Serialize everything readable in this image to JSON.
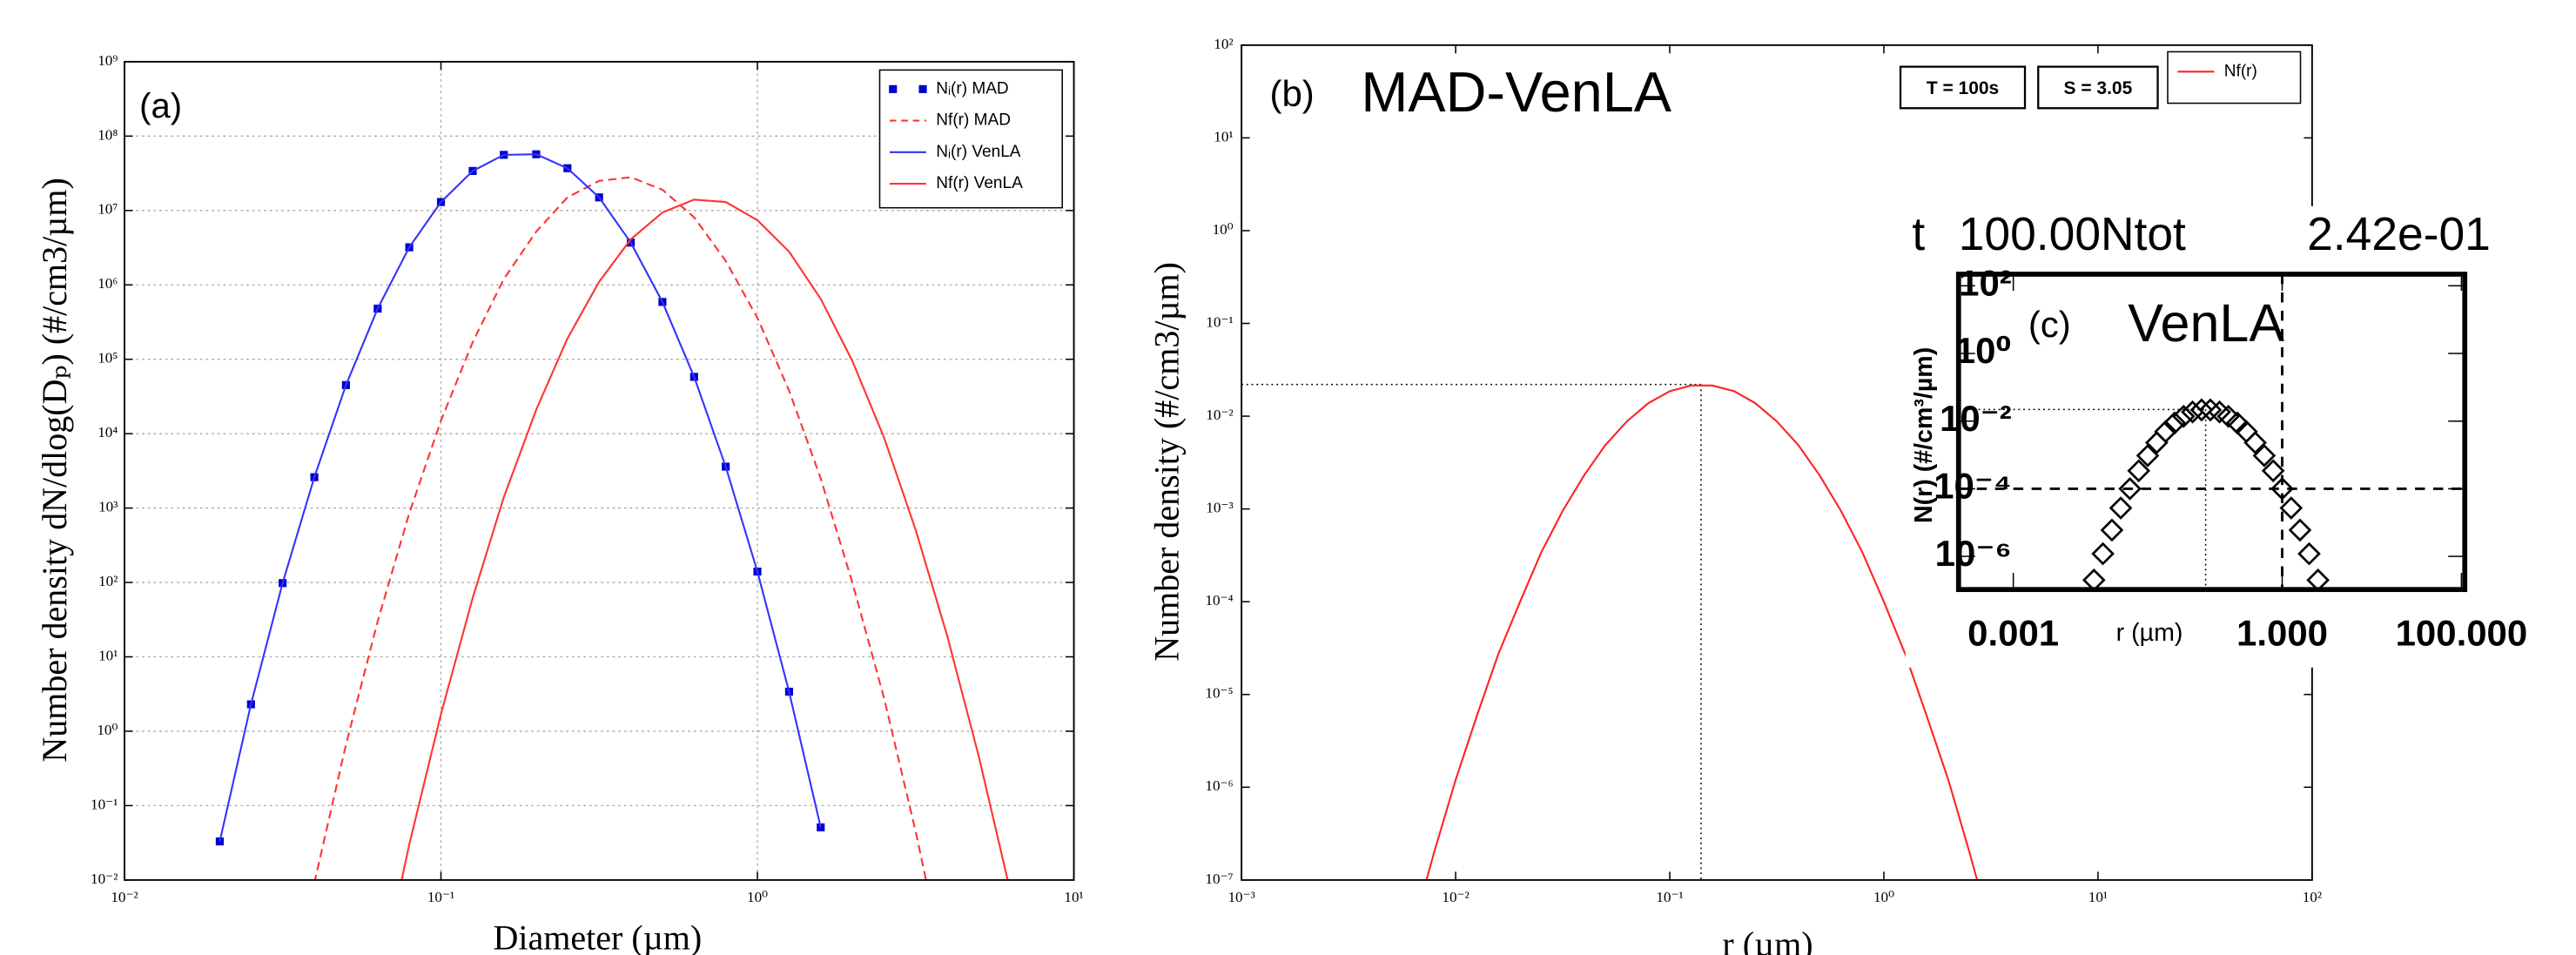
{
  "chart_data": [
    {
      "type": "line",
      "label": "(a)",
      "xlabel": "Diameter (µm)",
      "ylabel": "Number density dN/dlog(Dₚ) (#/cm3/µm)",
      "log_x": true,
      "log_y": true,
      "grid": true,
      "legend": "upper right",
      "xlim": [
        0.01,
        10
      ],
      "ylim": [
        0.01,
        1000000000
      ],
      "xticks": [
        {
          "value": 0.01,
          "label": "10⁻²"
        },
        {
          "value": 0.1,
          "label": "10⁻¹"
        },
        {
          "value": 1,
          "label": "10⁰"
        },
        {
          "value": 10,
          "label": "10¹"
        }
      ],
      "yticks": [
        {
          "value": 0.01,
          "label": "10⁻²"
        },
        {
          "value": 0.1,
          "label": "10⁻¹"
        },
        {
          "value": 1,
          "label": "10⁰"
        },
        {
          "value": 10,
          "label": "10¹"
        },
        {
          "value": 100,
          "label": "10²"
        },
        {
          "value": 1000,
          "label": "10³"
        },
        {
          "value": 10000,
          "label": "10⁴"
        },
        {
          "value": 100000,
          "label": "10⁵"
        },
        {
          "value": 1000000,
          "label": "10⁶"
        },
        {
          "value": 10000000,
          "label": "10⁷"
        },
        {
          "value": 100000000,
          "label": "10⁸"
        },
        {
          "value": 1000000000,
          "label": "10⁹"
        }
      ],
      "series": [
        {
          "name": "Nᵢ(r) MAD",
          "color": "#0000cc",
          "style": "markers",
          "marker": "square",
          "x": [
            0.02,
            0.0251,
            0.0316,
            0.0398,
            0.0501,
            0.0631,
            0.0794,
            0.1,
            0.126,
            0.158,
            0.2,
            0.251,
            0.316,
            0.398,
            0.501,
            0.631,
            0.794,
            1,
            1.259,
            1.585
          ],
          "values": [
            0.033,
            2.3,
            98,
            2600,
            45000,
            480000,
            3200000,
            13000000,
            34000000,
            56000000,
            57000000,
            37000000,
            15000000,
            3700000,
            590000,
            58000,
            3600,
            140,
            3.4,
            0.051
          ]
        },
        {
          "name": "Nf(r) MAD",
          "color": "#ff3333",
          "style": "dashed",
          "x": [
            0.0398,
            0.0501,
            0.0631,
            0.0794,
            0.1,
            0.126,
            0.158,
            0.2,
            0.251,
            0.316,
            0.398,
            0.501,
            0.631,
            0.794,
            1,
            1.259,
            1.585,
            1.995,
            2.512,
            3.162,
            3.981
          ],
          "values": [
            0.0091,
            0.66,
            30,
            850,
            15000,
            170000,
            1200000,
            5200000,
            15000000,
            25000000,
            28000000,
            19000000,
            8100000,
            2100000,
            360000,
            38000,
            2500,
            100,
            2.8,
            0.045,
            0.00046
          ]
        },
        {
          "name": "Nᵢ(r) VenLA",
          "color": "#3333ff",
          "style": "solid",
          "x": [
            0.02,
            0.0251,
            0.0316,
            0.0398,
            0.0501,
            0.0631,
            0.0794,
            0.1,
            0.126,
            0.158,
            0.2,
            0.251,
            0.316,
            0.398,
            0.501,
            0.631,
            0.794,
            1,
            1.259,
            1.585
          ],
          "values": [
            0.033,
            2.3,
            98,
            2600,
            45000,
            480000,
            3200000,
            13000000,
            34000000,
            56000000,
            57000000,
            37000000,
            15000000,
            3700000,
            590000,
            58000,
            3600,
            140,
            3.4,
            0.051
          ]
        },
        {
          "name": "Nf(r) VenLA",
          "color": "#ff3333",
          "style": "solid",
          "x": [
            0.0631,
            0.0794,
            0.1,
            0.126,
            0.158,
            0.2,
            0.251,
            0.316,
            0.398,
            0.501,
            0.631,
            0.794,
            1,
            1.259,
            1.585,
            1.995,
            2.512,
            3.162,
            3.981,
            5.012,
            6.31
          ],
          "values": [
            0.00032,
            0.03,
            1.7,
            62,
            1400,
            21000,
            190000,
            1100000,
            4100000,
            9400000,
            14000000,
            13000000,
            7400000,
            2800000,
            650000,
            95000,
            8900,
            510,
            19,
            0.45,
            0.0068
          ]
        }
      ]
    },
    {
      "type": "line",
      "label": "(b)",
      "title": "MAD-VenLA",
      "annotations": [
        "T = 100s",
        "S = 3.05"
      ],
      "xlabel": "r (µm)",
      "ylabel": "Number density  (#/cm3/µm)",
      "log_x": true,
      "log_y": true,
      "grid": false,
      "legend": "upper right",
      "xlim": [
        0.001,
        100
      ],
      "ylim": [
        1e-07,
        100
      ],
      "xticks": [
        {
          "value": 0.001,
          "label": "10⁻³"
        },
        {
          "value": 0.01,
          "label": "10⁻²"
        },
        {
          "value": 0.1,
          "label": "10⁻¹"
        },
        {
          "value": 1,
          "label": "10⁰"
        },
        {
          "value": 10,
          "label": "10¹"
        },
        {
          "value": 100,
          "label": "10²"
        }
      ],
      "yticks": [
        {
          "value": 1e-07,
          "label": "10⁻⁷"
        },
        {
          "value": 1e-06,
          "label": "10⁻⁶"
        },
        {
          "value": 1e-05,
          "label": "10⁻⁵"
        },
        {
          "value": 0.0001,
          "label": "10⁻⁴"
        },
        {
          "value": 0.001,
          "label": "10⁻³"
        },
        {
          "value": 0.01,
          "label": "10⁻²"
        },
        {
          "value": 0.1,
          "label": "10⁻¹"
        },
        {
          "value": 1,
          "label": "10⁰"
        },
        {
          "value": 10,
          "label": "10¹"
        },
        {
          "value": 100,
          "label": "10²"
        }
      ],
      "peak": {
        "x": 0.14,
        "y": 0.022
      },
      "series": [
        {
          "name": "Nf(r)",
          "color": "#ff2222",
          "style": "solid",
          "x": [
            0.00631,
            0.00794,
            0.01,
            0.0126,
            0.0158,
            0.02,
            0.0251,
            0.0316,
            0.0398,
            0.0501,
            0.0631,
            0.0794,
            0.1,
            0.126,
            0.158,
            0.2,
            0.251,
            0.316,
            0.398,
            0.501,
            0.631,
            0.794,
            1,
            1.26,
            1.58,
            2,
            2.51,
            3.16
          ],
          "values": [
            2.9e-08,
            2e-07,
            1.2e-06,
            6e-06,
            2.7e-05,
            0.0001,
            0.00034,
            0.00095,
            0.0023,
            0.0049,
            0.0088,
            0.0138,
            0.0186,
            0.0214,
            0.0214,
            0.0186,
            0.0138,
            0.0088,
            0.0049,
            0.0023,
            0.00095,
            0.00034,
            0.0001,
            2.7e-05,
            6e-06,
            1.2e-06,
            2e-07,
            2.9e-08
          ]
        }
      ]
    },
    {
      "type": "line",
      "header": [
        "t",
        "100.00Ntot",
        "2.42e-01"
      ],
      "label": "(c)",
      "title": "VenLA",
      "xlabel": "r (µm)",
      "ylabel": "N(r)  (#/cm³/µm)",
      "log_x": true,
      "log_y": true,
      "grid": false,
      "xlim": [
        0.000245,
        109
      ],
      "ylim": [
        1.05e-07,
        220
      ],
      "xticks": [
        0.001,
        {
          "value": 1,
          "label": "1.000"
        },
        {
          "value": 100,
          "label": "100.000"
        }
      ],
      "yticks": [
        {
          "value": 100,
          "label": "10²"
        },
        {
          "value": 1,
          "label": "10⁰"
        },
        {
          "value": 0.01,
          "label": "10⁻²"
        },
        {
          "value": 0.0001,
          "label": "10⁻⁴"
        },
        {
          "value": 1e-06,
          "label": "10⁻⁶"
        }
      ],
      "peak": {
        "x": 0.14,
        "y": 0.022
      },
      "dashed": {
        "x": 1,
        "y": 0.0001
      },
      "series": [
        {
          "color": "#000000",
          "style": "markers",
          "marker": "diamond",
          "x": [
            0.00794,
            0.01,
            0.0126,
            0.0158,
            0.02,
            0.0251,
            0.0316,
            0.0398,
            0.0501,
            0.0631,
            0.0794,
            0.1,
            0.126,
            0.158,
            0.2,
            0.251,
            0.316,
            0.398,
            0.501,
            0.631,
            0.794,
            1,
            1.26,
            1.58,
            2,
            2.51
          ],
          "values": [
            2e-07,
            1.2e-06,
            6e-06,
            2.7e-05,
            0.0001,
            0.00034,
            0.00095,
            0.0023,
            0.0049,
            0.0088,
            0.0138,
            0.0186,
            0.0214,
            0.0214,
            0.0186,
            0.0138,
            0.0088,
            0.0049,
            0.0023,
            0.00095,
            0.00034,
            0.0001,
            2.7e-05,
            6e-06,
            1.2e-06,
            2e-07
          ]
        }
      ]
    }
  ]
}
